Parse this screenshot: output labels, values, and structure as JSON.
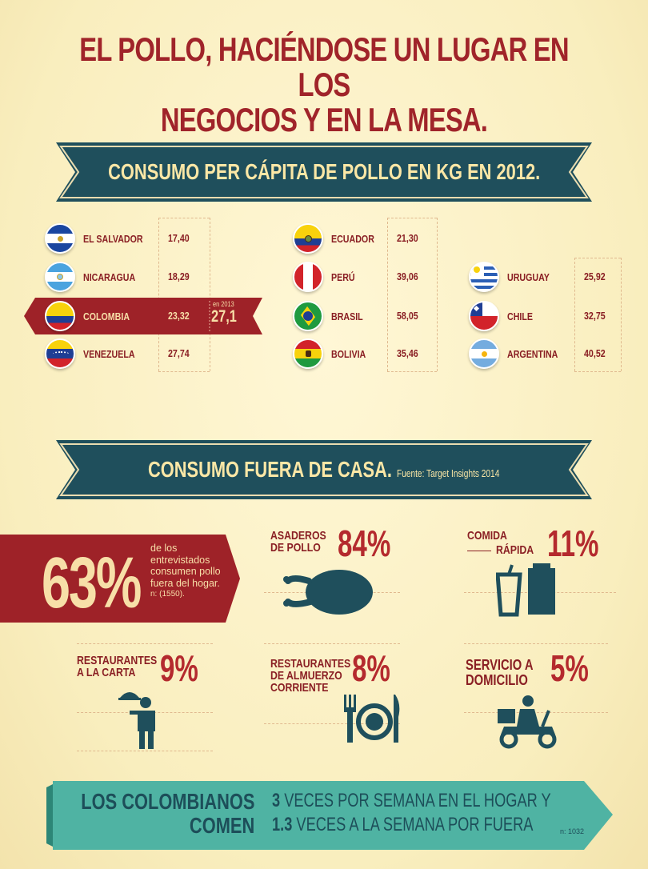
{
  "title": {
    "line1": "EL POLLO, HACIÉNDOSE UN LUGAR EN LOS",
    "line2": "NEGOCIOS Y EN LA MESA."
  },
  "banner1": {
    "text": "CONSUMO PER CÁPITA DE POLLO EN KG EN 2012."
  },
  "countries_col1": [
    {
      "name": "EL SALVADOR",
      "value": "17,40",
      "flag": "el-salvador-flag"
    },
    {
      "name": "NICARAGUA",
      "value": "18,29",
      "flag": "nicaragua-flag"
    },
    {
      "name": "COLOMBIA",
      "value": "23,32",
      "flag": "colombia-flag",
      "note_label": "en 2013",
      "note_value": "27,1"
    },
    {
      "name": "VENEZUELA",
      "value": "27,74",
      "flag": "venezuela-flag"
    }
  ],
  "countries_col2": [
    {
      "name": "ECUADOR",
      "value": "21,30",
      "flag": "ecuador-flag"
    },
    {
      "name": "PERÚ",
      "value": "39,06",
      "flag": "peru-flag"
    },
    {
      "name": "BRASIL",
      "value": "58,05",
      "flag": "brasil-flag"
    },
    {
      "name": "BOLIVIA",
      "value": "35,46",
      "flag": "bolivia-flag"
    }
  ],
  "countries_col3": [
    {
      "name": "URUGUAY",
      "value": "25,92",
      "flag": "uruguay-flag"
    },
    {
      "name": "CHILE",
      "value": "32,75",
      "flag": "chile-flag"
    },
    {
      "name": "ARGENTINA",
      "value": "40,52",
      "flag": "argentina-flag"
    }
  ],
  "banner2": {
    "text": "CONSUMO FUERA DE CASA.",
    "source": "Fuente: Target Insights 2014"
  },
  "stat_main": {
    "value": "63%",
    "desc_lines": [
      "de los",
      "entrevistados",
      "consumen pollo",
      "fuera del hogar."
    ],
    "n": "n: (1550)."
  },
  "stats": {
    "asaderos": {
      "label1": "ASADEROS",
      "label2": "DE POLLO",
      "pct": "84%",
      "icon": "roast-chicken-icon"
    },
    "comida": {
      "label1": "COMIDA",
      "label2": "RÁPIDA",
      "pct": "11%",
      "icon": "fast-food-icon"
    },
    "carta": {
      "label1": "RESTAURANTES",
      "label2": "A LA CARTA",
      "pct": "9%",
      "icon": "waiter-icon"
    },
    "almuerzo": {
      "label1": "RESTAURANTES",
      "label2": "DE ALMUERZO",
      "label3": "CORRIENTE",
      "pct": "8%",
      "icon": "plate-cutlery-icon"
    },
    "domicilio": {
      "label1": "SERVICIO A",
      "label2": "DOMICILIO",
      "pct": "5%",
      "icon": "delivery-scooter-icon"
    }
  },
  "band": {
    "label1": "LOS COLOMBIANOS",
    "label2": "COMEN",
    "line1_num": "3",
    "line1_text": " VECES POR SEMANA EN EL HOGAR Y",
    "line2_num": "1.3",
    "line2_text": " VECES A LA SEMANA POR FUERA",
    "n": "n: 1032"
  },
  "colors": {
    "brand_red": "#a0242a",
    "banner_teal": "#1f4f5c",
    "band_teal": "#4fb3a3",
    "background": "#fbf2c4"
  }
}
